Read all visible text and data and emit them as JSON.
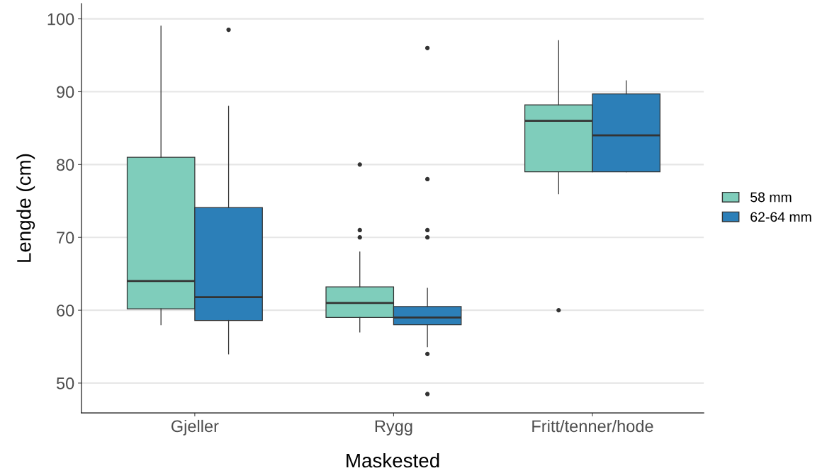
{
  "chart_data": {
    "type": "box",
    "xlabel": "Maskested",
    "ylabel": "Lengde (cm)",
    "categories": [
      "Gjeller",
      "Rygg",
      "Fritt/tenner/hode"
    ],
    "series": [
      {
        "name": "58 mm",
        "color": "#7fcdbb",
        "boxes": [
          {
            "low": 58,
            "q1": 60.2,
            "median": 64,
            "q3": 81,
            "high": 99
          },
          {
            "low": 57,
            "q1": 59,
            "median": 61,
            "q3": 63.2,
            "high": 68,
            "outliers": [
              80,
              71,
              70
            ]
          },
          {
            "low": 76,
            "q1": 79,
            "median": 86,
            "q3": 88.2,
            "high": 97,
            "outliers": [
              60
            ]
          }
        ]
      },
      {
        "name": "62-64 mm",
        "color": "#2c7fb8",
        "boxes": [
          {
            "low": 54,
            "q1": 58.6,
            "median": 61.8,
            "q3": 74.1,
            "high": 88,
            "outliers": [
              98.5
            ]
          },
          {
            "low": 55,
            "q1": 58,
            "median": 59,
            "q3": 60.5,
            "high": 63,
            "outliers": [
              96,
              78,
              71,
              70,
              54,
              48.5
            ]
          },
          {
            "low": 79,
            "q1": 79,
            "median": 84,
            "q3": 89.7,
            "high": 91.5
          }
        ]
      }
    ],
    "ylim": [
      45.9,
      102.1
    ],
    "yticks": [
      50,
      60,
      70,
      80,
      90,
      100
    ],
    "grid": "y",
    "legend": "right"
  }
}
